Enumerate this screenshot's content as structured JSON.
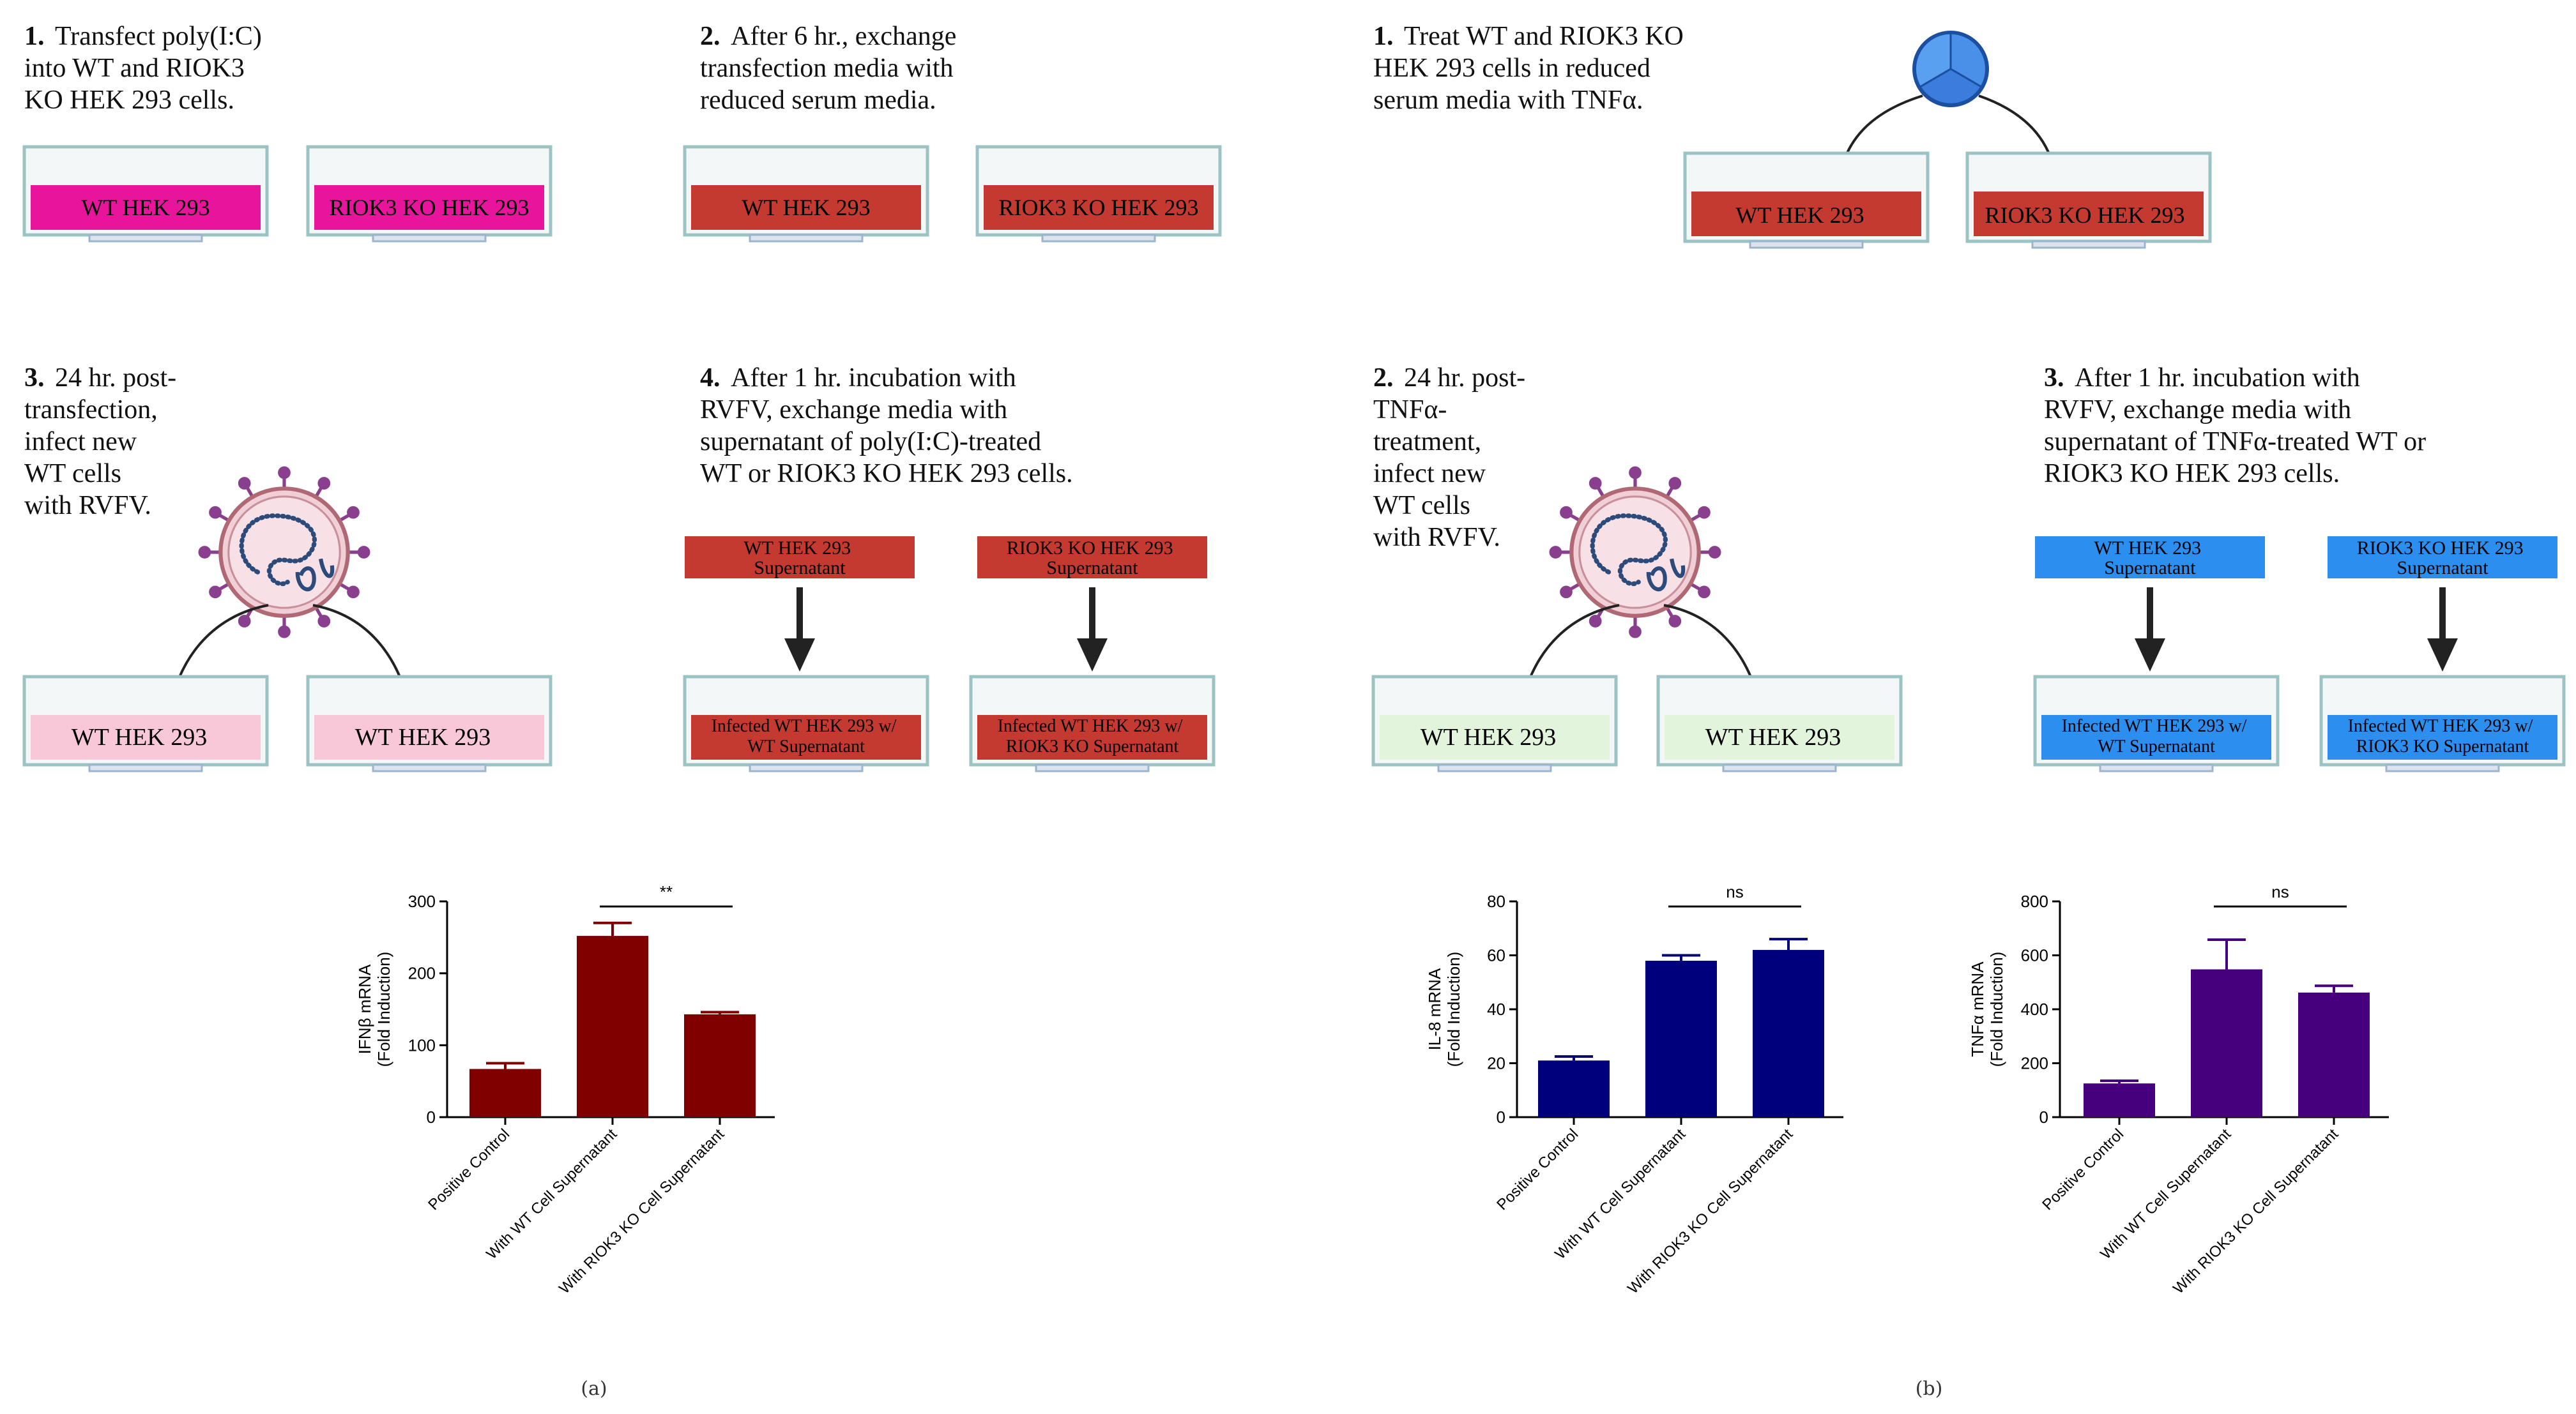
{
  "panel_labels": {
    "a": "(a)",
    "b": "(b)"
  },
  "panel_a": {
    "step1": {
      "number": "1.",
      "lines": [
        "Transfect poly(I:C)",
        "into WT and RIOK3",
        "KO HEK 293 cells."
      ],
      "dish_left": "WT HEK 293",
      "dish_right": "RIOK3 KO HEK 293"
    },
    "step2": {
      "number": "2.",
      "lines": [
        "After 6 hr., exchange",
        "transfection media with",
        "reduced serum media."
      ],
      "dish_left": "WT HEK 293",
      "dish_right": "RIOK3 KO HEK 293"
    },
    "step3": {
      "number": "3.",
      "lines": [
        "24 hr. post-",
        "transfection,",
        "infect new",
        "WT cells",
        "with RVFV."
      ],
      "dish_left": "WT HEK 293",
      "dish_right": "WT HEK 293"
    },
    "step4": {
      "number": "4.",
      "lines": [
        "After 1 hr. incubation with",
        "RVFV, exchange media with",
        "supernatant of poly(I:C)-treated",
        "WT or RIOK3 KO HEK 293 cells."
      ],
      "sup_left": [
        "WT HEK 293",
        "Supernatant"
      ],
      "sup_right": [
        "RIOK3 KO HEK 293",
        "Supernatant"
      ],
      "dish_left": [
        "Infected WT HEK 293 w/",
        "WT Supernatant"
      ],
      "dish_right": [
        "Infected WT HEK 293 w/",
        "RIOK3 KO Supernatant"
      ]
    }
  },
  "panel_b": {
    "step1": {
      "number": "1.",
      "lines": [
        "Treat WT and RIOK3 KO",
        "HEK 293 cells in reduced",
        "serum media with TNFα."
      ],
      "dish_left": "WT HEK 293",
      "dish_right": "RIOK3 KO HEK 293"
    },
    "step2": {
      "number": "2.",
      "lines": [
        "24 hr. post-",
        "TNFα-",
        "treatment,",
        "infect new",
        "WT cells",
        "with RVFV."
      ],
      "dish_left": "WT HEK 293",
      "dish_right": "WT HEK 293"
    },
    "step3": {
      "number": "3.",
      "lines": [
        "After 1 hr. incubation with",
        "RVFV, exchange media with",
        "supernatant of TNFα-treated WT or",
        "RIOK3 KO HEK 293 cells."
      ],
      "sup_left": [
        "WT HEK 293",
        "Supernatant"
      ],
      "sup_right": [
        "RIOK3 KO HEK 293",
        "Supernatant"
      ],
      "dish_left": [
        "Infected WT HEK 293 w/",
        "WT Supernatant"
      ],
      "dish_right": [
        "Infected WT HEK 293 w/",
        "RIOK3 KO Supernatant"
      ]
    }
  },
  "colors": {
    "magenta": "#e8159c",
    "red": "#c43a30",
    "pink": "#f9c8d8",
    "green": "#e3f4dd",
    "blue": "#2c8ff0",
    "dark_red": "#800000",
    "navy": "#00007d",
    "purple": "#46007d"
  },
  "chart_data": [
    {
      "type": "bar",
      "ylabel": [
        "IFNβ mRNA",
        "(Fold Induction)"
      ],
      "ylim": [
        0,
        300
      ],
      "yticks": [
        0,
        100,
        200,
        300
      ],
      "categories": [
        "Positive Control",
        "With WT Cell Supernatant",
        "With RIOK3 KO Cell Supernatant"
      ],
      "values": [
        67,
        252,
        143
      ],
      "errors": [
        8,
        18,
        3
      ],
      "significance": {
        "between": [
          1,
          2
        ],
        "label": "**"
      },
      "color": "#800000"
    },
    {
      "type": "bar",
      "ylabel": [
        "IL-8 mRNA",
        "(Fold Induction)"
      ],
      "ylim": [
        0,
        80
      ],
      "yticks": [
        0,
        20,
        40,
        60,
        80
      ],
      "categories": [
        "Positive Control",
        "With WT Cell Supernatant",
        "With RIOK3 KO Cell Supernatant"
      ],
      "values": [
        21,
        58,
        62
      ],
      "errors": [
        1.5,
        2,
        4
      ],
      "significance": {
        "between": [
          1,
          2
        ],
        "label": "ns"
      },
      "color": "#00007d"
    },
    {
      "type": "bar",
      "ylabel": [
        "TNFα mRNA",
        "(Fold Induction)"
      ],
      "ylim": [
        0,
        800
      ],
      "yticks": [
        0,
        200,
        400,
        600,
        800
      ],
      "categories": [
        "Positive Control",
        "With WT Cell Supernatant",
        "With RIOK3 KO Cell Supernatant"
      ],
      "values": [
        125,
        548,
        462
      ],
      "errors": [
        10,
        110,
        25
      ],
      "significance": {
        "between": [
          1,
          2
        ],
        "label": "ns"
      },
      "color": "#46007d"
    }
  ]
}
